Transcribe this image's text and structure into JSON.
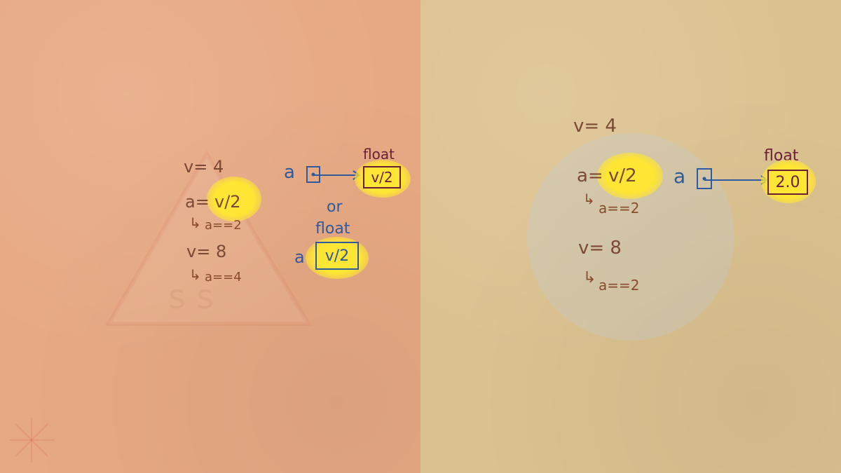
{
  "left": {
    "v_initial": "v= 4",
    "assign_expr": "a=",
    "assign_value": "v/2",
    "result_1": "a==2",
    "v_update": "v= 8",
    "result_2": "a==4",
    "pointer_var": "a",
    "type_label_top": "float",
    "box_value_top": "v/2",
    "or_label": "or",
    "type_label_bottom": "float",
    "inline_var": "a",
    "box_value_bottom": "v/2"
  },
  "right": {
    "v_initial": "v= 4",
    "assign_expr": "a=",
    "assign_value": "v/2",
    "result_1": "a==2",
    "v_update": "v= 8",
    "result_2": "a==2",
    "pointer_var": "a",
    "type_label": "float",
    "box_value": "2.0"
  },
  "colors": {
    "left_background": "#e7a983",
    "right_background": "#dcc290",
    "highlight": "#ffe534",
    "code_text": "#8a4a2e",
    "pointer_blue": "#2f5a9e",
    "type_maroon": "#6b1e3a"
  }
}
